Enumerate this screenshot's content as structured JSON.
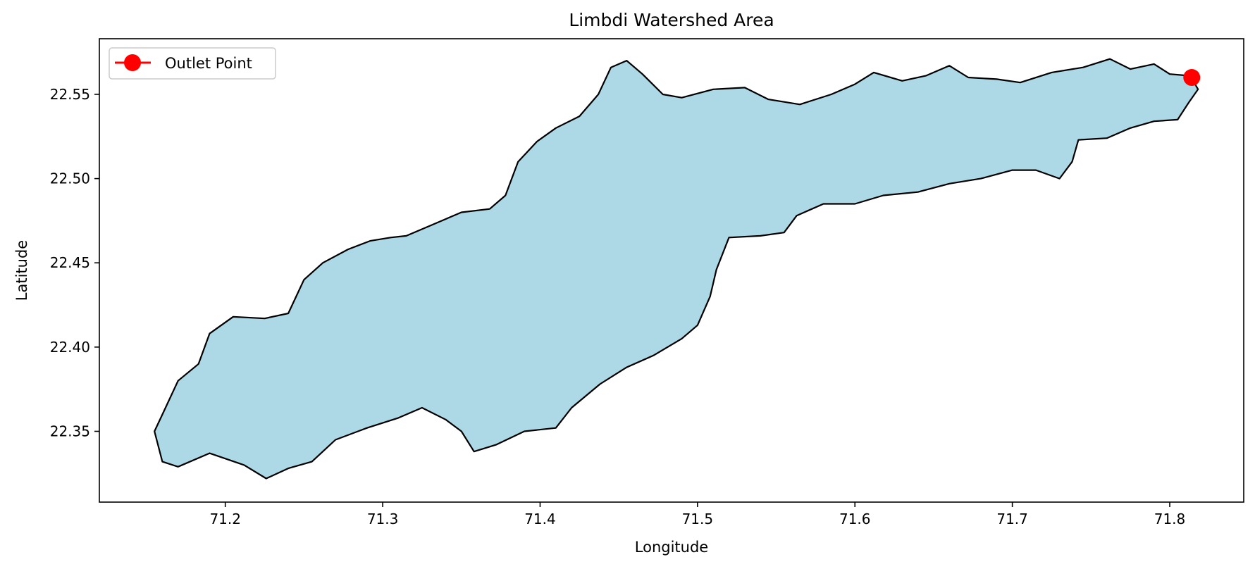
{
  "chart_data": {
    "type": "map",
    "title": "Limbdi Watershed Area",
    "xlabel": "Longitude",
    "ylabel": "Latitude",
    "xlim": [
      71.12,
      71.847
    ],
    "ylim": [
      22.308,
      22.583
    ],
    "xticks": [
      71.2,
      71.3,
      71.4,
      71.5,
      71.6,
      71.7,
      71.8
    ],
    "xtick_labels": [
      "71.2",
      "71.3",
      "71.4",
      "71.5",
      "71.6",
      "71.7",
      "71.8"
    ],
    "yticks": [
      22.35,
      22.4,
      22.45,
      22.5,
      22.55
    ],
    "ytick_labels": [
      "22.35",
      "22.40",
      "22.45",
      "22.50",
      "22.55"
    ],
    "grid": false,
    "legend": {
      "position": "top-left",
      "entries": [
        {
          "label": "Outlet Point",
          "color": "#ff0000"
        }
      ]
    },
    "outlet_point": {
      "lon": 71.814,
      "lat": 22.56,
      "color": "#ff0000"
    },
    "watershed": {
      "fill_color": "#add8e6",
      "edge_color": "#000000",
      "boundary": [
        [
          71.813,
          22.561
        ],
        [
          71.8,
          22.562
        ],
        [
          71.79,
          22.568
        ],
        [
          71.775,
          22.565
        ],
        [
          71.762,
          22.571
        ],
        [
          71.745,
          22.566
        ],
        [
          71.725,
          22.563
        ],
        [
          71.705,
          22.557
        ],
        [
          71.69,
          22.559
        ],
        [
          71.672,
          22.56
        ],
        [
          71.66,
          22.567
        ],
        [
          71.645,
          22.561
        ],
        [
          71.63,
          22.558
        ],
        [
          71.612,
          22.563
        ],
        [
          71.6,
          22.556
        ],
        [
          71.585,
          22.55
        ],
        [
          71.565,
          22.544
        ],
        [
          71.545,
          22.547
        ],
        [
          71.53,
          22.554
        ],
        [
          71.51,
          22.553
        ],
        [
          71.49,
          22.548
        ],
        [
          71.478,
          22.55
        ],
        [
          71.465,
          22.562
        ],
        [
          71.455,
          22.57
        ],
        [
          71.445,
          22.566
        ],
        [
          71.437,
          22.55
        ],
        [
          71.425,
          22.537
        ],
        [
          71.41,
          22.53
        ],
        [
          71.398,
          22.522
        ],
        [
          71.386,
          22.51
        ],
        [
          71.378,
          22.49
        ],
        [
          71.368,
          22.482
        ],
        [
          71.35,
          22.48
        ],
        [
          71.33,
          22.472
        ],
        [
          71.315,
          22.466
        ],
        [
          71.305,
          22.465
        ],
        [
          71.292,
          22.463
        ],
        [
          71.278,
          22.458
        ],
        [
          71.262,
          22.45
        ],
        [
          71.25,
          22.44
        ],
        [
          71.24,
          22.42
        ],
        [
          71.225,
          22.417
        ],
        [
          71.205,
          22.418
        ],
        [
          71.19,
          22.408
        ],
        [
          71.183,
          22.39
        ],
        [
          71.17,
          22.38
        ],
        [
          71.16,
          22.36
        ],
        [
          71.155,
          22.35
        ],
        [
          71.16,
          22.332
        ],
        [
          71.17,
          22.329
        ],
        [
          71.19,
          22.337
        ],
        [
          71.212,
          22.33
        ],
        [
          71.226,
          22.322
        ],
        [
          71.24,
          22.328
        ],
        [
          71.255,
          22.332
        ],
        [
          71.27,
          22.345
        ],
        [
          71.29,
          22.352
        ],
        [
          71.31,
          22.358
        ],
        [
          71.325,
          22.364
        ],
        [
          71.34,
          22.357
        ],
        [
          71.35,
          22.35
        ],
        [
          71.358,
          22.338
        ],
        [
          71.372,
          22.342
        ],
        [
          71.39,
          22.35
        ],
        [
          71.41,
          22.352
        ],
        [
          71.42,
          22.364
        ],
        [
          71.438,
          22.378
        ],
        [
          71.455,
          22.388
        ],
        [
          71.472,
          22.395
        ],
        [
          71.49,
          22.405
        ],
        [
          71.5,
          22.413
        ],
        [
          71.508,
          22.43
        ],
        [
          71.512,
          22.446
        ],
        [
          71.52,
          22.465
        ],
        [
          71.54,
          22.466
        ],
        [
          71.555,
          22.468
        ],
        [
          71.563,
          22.478
        ],
        [
          71.58,
          22.485
        ],
        [
          71.6,
          22.485
        ],
        [
          71.618,
          22.49
        ],
        [
          71.64,
          22.492
        ],
        [
          71.66,
          22.497
        ],
        [
          71.68,
          22.5
        ],
        [
          71.7,
          22.505
        ],
        [
          71.715,
          22.505
        ],
        [
          71.73,
          22.5
        ],
        [
          71.738,
          22.51
        ],
        [
          71.742,
          22.523
        ],
        [
          71.76,
          22.524
        ],
        [
          71.775,
          22.53
        ],
        [
          71.79,
          22.534
        ],
        [
          71.805,
          22.535
        ],
        [
          71.812,
          22.545
        ],
        [
          71.818,
          22.553
        ]
      ]
    }
  }
}
